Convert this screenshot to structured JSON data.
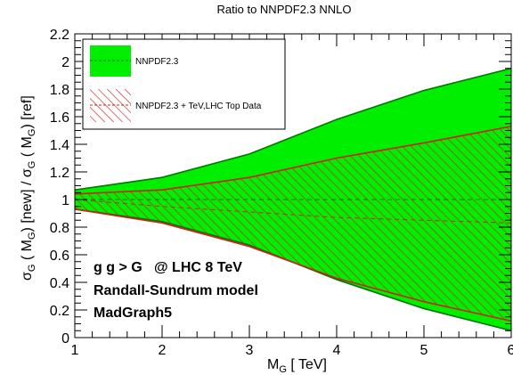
{
  "chart_data": {
    "type": "area",
    "title": "Ratio to NNPDF2.3 NNLO",
    "xlabel": {
      "main": "M",
      "sub": "G",
      "rest": " [ TeV]"
    },
    "ylabel": {
      "s1": "σ",
      "sub1": "G",
      "p1": " ( M",
      "sub2": "G",
      "p2": ") [new] / σ",
      "sub3": "G",
      "p3": " ( M",
      "sub4": "G",
      "p4": ") [ref]"
    },
    "xlim": [
      1,
      6
    ],
    "ylim": [
      0,
      2.2
    ],
    "x_ticks": [
      "1",
      "2",
      "3",
      "4",
      "5",
      "6"
    ],
    "y_ticks": [
      "0",
      "0.2",
      "0.4",
      "0.6",
      "0.8",
      "1",
      "1.2",
      "1.4",
      "1.6",
      "1.8",
      "2",
      "2.2"
    ],
    "x": [
      1,
      2,
      3,
      4,
      5,
      6
    ],
    "series": [
      {
        "name": "NNPDF2.3",
        "style": "solid-fill",
        "color": "#00ee00",
        "line_color": "#007700",
        "center": [
          1.0,
          1.0,
          1.0,
          1.0,
          1.0,
          1.0
        ],
        "upper": [
          1.07,
          1.16,
          1.33,
          1.58,
          1.79,
          1.95
        ],
        "lower": [
          0.93,
          0.84,
          0.67,
          0.42,
          0.21,
          0.05
        ]
      },
      {
        "name": "NNPDF2.3 + TeV,LHC Top Data",
        "style": "hatched",
        "color": "#cc2222",
        "line_color": "#cc2222",
        "center": [
          1.0,
          0.95,
          0.91,
          0.87,
          0.85,
          0.83
        ],
        "upper": [
          1.04,
          1.07,
          1.16,
          1.3,
          1.41,
          1.53
        ],
        "lower": [
          0.93,
          0.83,
          0.66,
          0.43,
          0.26,
          0.12
        ]
      }
    ],
    "annotations": [
      "g g > G   @ LHC 8 TeV",
      "Randall-Sundrum model",
      "MadGraph5"
    ]
  }
}
